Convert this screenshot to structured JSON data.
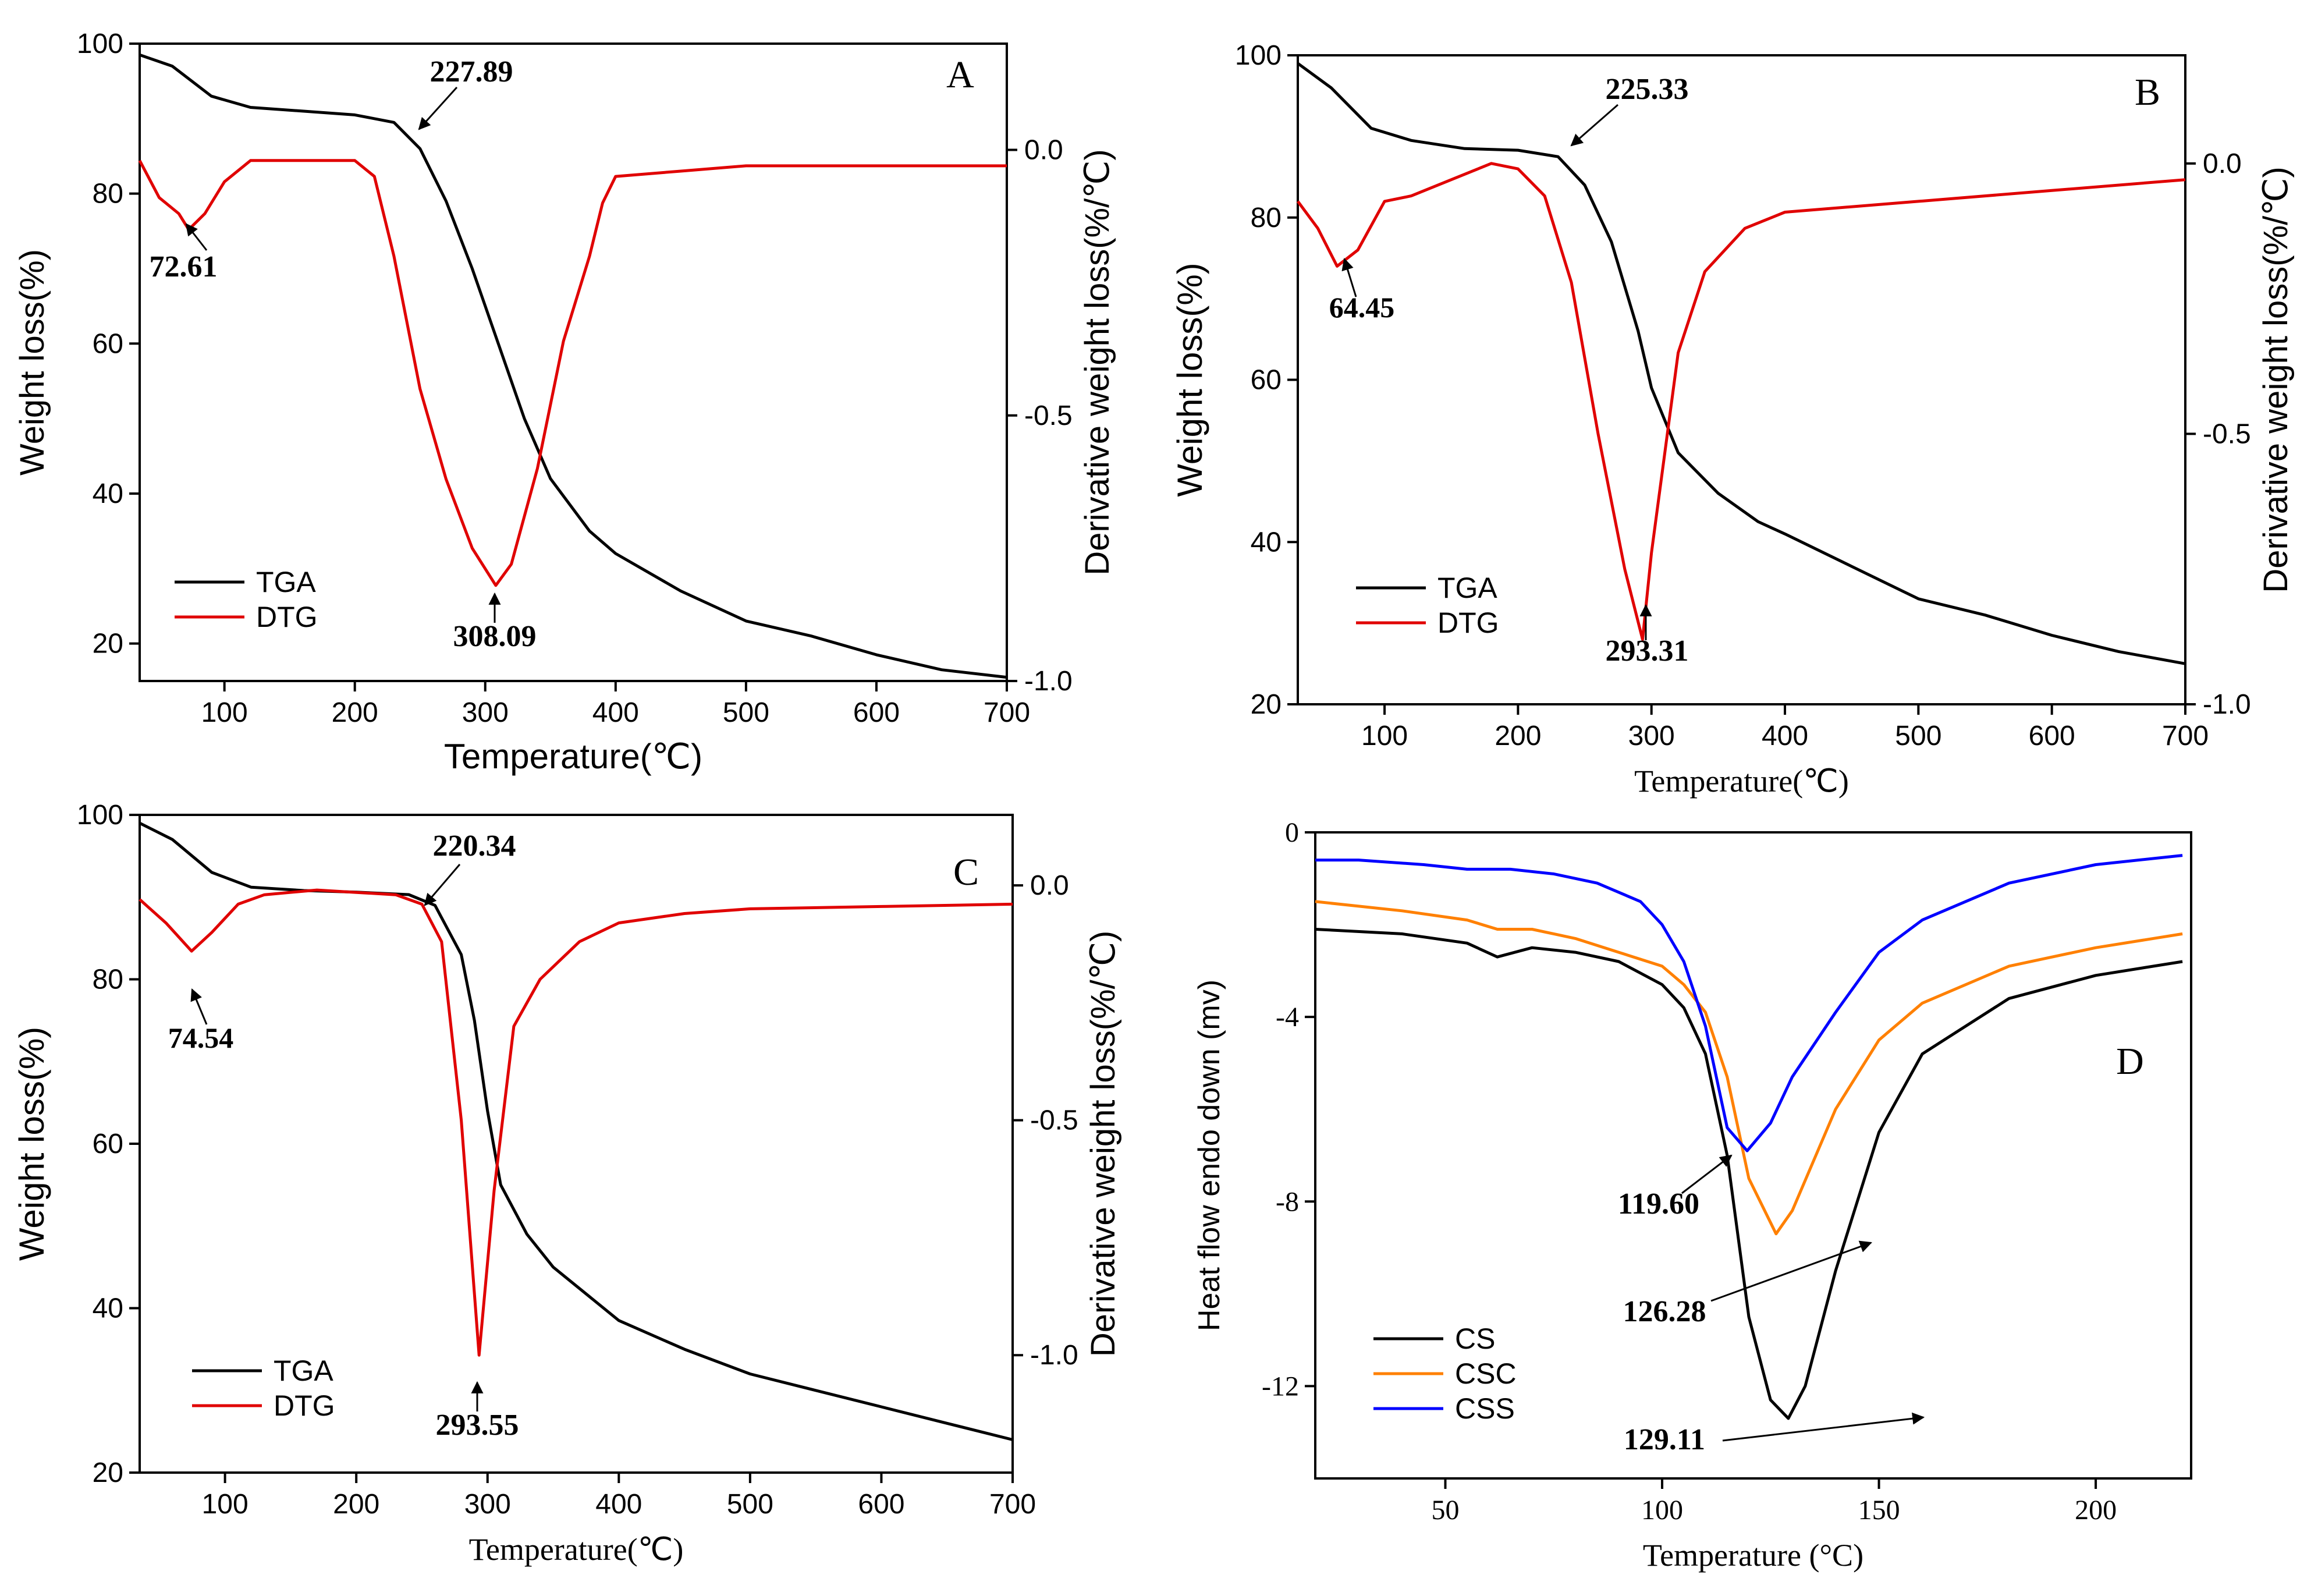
{
  "chart_data": [
    {
      "panel": "A",
      "type": "line",
      "xlabel": "Temperature(℃)",
      "ylabel": "Weight loss(%)",
      "y2label": "Derivative weight loss(%/℃)",
      "xlim": [
        35,
        700
      ],
      "ylim": [
        15,
        100
      ],
      "y2lim": [
        -1.0,
        0.2
      ],
      "xticks": [
        100,
        200,
        300,
        400,
        500,
        600,
        700
      ],
      "yticks": [
        20,
        40,
        60,
        80,
        100
      ],
      "y2ticks": [
        -1.0,
        -0.5,
        0.0
      ],
      "legend": [
        "TGA",
        "DTG"
      ],
      "legend_position": "bottom-left",
      "series": [
        {
          "name": "TGA",
          "axis": "left",
          "color": "#000000",
          "x": [
            35,
            60,
            90,
            120,
            160,
            200,
            230,
            250,
            270,
            290,
            310,
            330,
            350,
            380,
            400,
            450,
            500,
            550,
            600,
            650,
            700
          ],
          "y": [
            98.5,
            97,
            93,
            91.5,
            91,
            90.5,
            89.5,
            86,
            79,
            70,
            60,
            50,
            42,
            35,
            32,
            27,
            23,
            21,
            18.5,
            16.5,
            15.5
          ]
        },
        {
          "name": "DTG",
          "axis": "right",
          "color": "#e00000",
          "x": [
            35,
            50,
            65,
            72.61,
            85,
            100,
            120,
            160,
            200,
            215,
            230,
            250,
            270,
            290,
            308.09,
            320,
            340,
            360,
            380,
            390,
            400,
            450,
            500,
            600,
            700
          ],
          "y": [
            -0.02,
            -0.09,
            -0.12,
            -0.15,
            -0.12,
            -0.06,
            -0.02,
            -0.02,
            -0.02,
            -0.05,
            -0.2,
            -0.45,
            -0.62,
            -0.75,
            -0.82,
            -0.78,
            -0.6,
            -0.36,
            -0.2,
            -0.1,
            -0.05,
            -0.04,
            -0.03,
            -0.03,
            -0.03
          ]
        }
      ],
      "annotations": [
        "227.89",
        "72.61",
        "308.09"
      ]
    },
    {
      "panel": "B",
      "type": "line",
      "xlabel": "Temperature(℃)",
      "ylabel": "Weight loss(%)",
      "y2label": "Derivative weight loss(%/℃)",
      "xlim": [
        35,
        700
      ],
      "ylim": [
        20,
        100
      ],
      "y2lim": [
        -1.0,
        0.2
      ],
      "xticks": [
        100,
        200,
        300,
        400,
        500,
        600,
        700
      ],
      "yticks": [
        20,
        40,
        60,
        80,
        100
      ],
      "y2ticks": [
        -1.0,
        -0.5,
        0.0
      ],
      "legend": [
        "TGA",
        "DTG"
      ],
      "legend_position": "bottom-left",
      "series": [
        {
          "name": "TGA",
          "axis": "left",
          "color": "#000000",
          "x": [
            35,
            60,
            90,
            120,
            160,
            200,
            230,
            250,
            270,
            290,
            300,
            320,
            350,
            380,
            400,
            450,
            500,
            550,
            600,
            650,
            700
          ],
          "y": [
            99,
            96,
            91,
            89.5,
            88.5,
            88.3,
            87.5,
            84,
            77,
            66,
            59,
            51,
            46,
            42.5,
            41,
            37,
            33,
            31,
            28.5,
            26.5,
            25
          ]
        },
        {
          "name": "DTG",
          "axis": "right",
          "color": "#e00000",
          "x": [
            35,
            50,
            64.45,
            80,
            100,
            120,
            150,
            180,
            200,
            220,
            240,
            260,
            280,
            293.31,
            300,
            320,
            340,
            370,
            400,
            500,
            600,
            700
          ],
          "y": [
            -0.07,
            -0.12,
            -0.19,
            -0.16,
            -0.07,
            -0.06,
            -0.03,
            0.0,
            -0.01,
            -0.06,
            -0.22,
            -0.5,
            -0.75,
            -0.88,
            -0.72,
            -0.35,
            -0.2,
            -0.12,
            -0.09,
            -0.07,
            -0.05,
            -0.03
          ]
        }
      ],
      "annotations": [
        "225.33",
        "64.45",
        "293.31"
      ]
    },
    {
      "panel": "C",
      "type": "line",
      "xlabel": "Temperature(℃)",
      "ylabel": "Weight loss(%)",
      "y2label": "Derivative weight loss(%/℃)",
      "xlim": [
        35,
        700
      ],
      "ylim": [
        20,
        100
      ],
      "y2lim": [
        -1.25,
        0.15
      ],
      "xticks": [
        100,
        200,
        300,
        400,
        500,
        600,
        700
      ],
      "yticks": [
        20,
        40,
        60,
        80,
        100
      ],
      "y2ticks": [
        -1.0,
        -0.5,
        0.0
      ],
      "legend": [
        "TGA",
        "DTG"
      ],
      "legend_position": "bottom-left",
      "series": [
        {
          "name": "TGA",
          "axis": "left",
          "color": "#000000",
          "x": [
            35,
            60,
            90,
            120,
            160,
            200,
            240,
            260,
            280,
            290,
            300,
            310,
            330,
            350,
            400,
            450,
            500,
            550,
            600,
            650,
            700
          ],
          "y": [
            99,
            97,
            93,
            91.2,
            90.8,
            90.6,
            90.3,
            89,
            83,
            75,
            64,
            55,
            49,
            45,
            38.5,
            35,
            32,
            30,
            28,
            26,
            24
          ]
        },
        {
          "name": "DTG",
          "axis": "right",
          "color": "#e00000",
          "x": [
            35,
            55,
            74.54,
            90,
            110,
            130,
            170,
            200,
            230,
            250,
            265,
            280,
            293.55,
            305,
            320,
            340,
            370,
            400,
            450,
            500,
            600,
            700
          ],
          "y": [
            -0.03,
            -0.08,
            -0.14,
            -0.1,
            -0.04,
            -0.02,
            -0.01,
            -0.015,
            -0.02,
            -0.04,
            -0.12,
            -0.5,
            -1.0,
            -0.65,
            -0.3,
            -0.2,
            -0.12,
            -0.08,
            -0.06,
            -0.05,
            -0.045,
            -0.04
          ]
        }
      ],
      "annotations": [
        "220.34",
        "74.54",
        "293.55"
      ]
    },
    {
      "panel": "D",
      "type": "line",
      "xlabel": "Temperature (°C)",
      "ylabel": "Heat flow endo down (mv)",
      "xlim": [
        20,
        222
      ],
      "ylim": [
        -14,
        0
      ],
      "xticks": [
        50,
        100,
        150,
        200
      ],
      "yticks": [
        -12,
        -8,
        -4,
        0
      ],
      "legend": [
        "CS",
        "CSC",
        "CSS"
      ],
      "legend_position": "bottom-left",
      "series": [
        {
          "name": "CS",
          "color": "#000000",
          "x": [
            20,
            40,
            55,
            62,
            70,
            80,
            90,
            100,
            105,
            110,
            115,
            120,
            125,
            129.11,
            133,
            140,
            150,
            160,
            180,
            200,
            220
          ],
          "y": [
            -2.1,
            -2.2,
            -2.4,
            -2.7,
            -2.5,
            -2.6,
            -2.8,
            -3.3,
            -3.8,
            -4.8,
            -7.0,
            -10.5,
            -12.3,
            -12.7,
            -12.0,
            -9.5,
            -6.5,
            -4.8,
            -3.6,
            -3.1,
            -2.8
          ]
        },
        {
          "name": "CSC",
          "color": "#ff8000",
          "x": [
            20,
            40,
            55,
            62,
            70,
            80,
            90,
            100,
            105,
            110,
            115,
            120,
            126.28,
            130,
            140,
            150,
            160,
            180,
            200,
            220
          ],
          "y": [
            -1.5,
            -1.7,
            -1.9,
            -2.1,
            -2.1,
            -2.3,
            -2.6,
            -2.9,
            -3.3,
            -3.9,
            -5.3,
            -7.5,
            -8.7,
            -8.2,
            -6.0,
            -4.5,
            -3.7,
            -2.9,
            -2.5,
            -2.2
          ]
        },
        {
          "name": "CSS",
          "color": "#0000ff",
          "x": [
            20,
            30,
            45,
            55,
            65,
            75,
            85,
            95,
            100,
            105,
            110,
            115,
            119.6,
            125,
            130,
            140,
            150,
            160,
            180,
            200,
            220
          ],
          "y": [
            -0.6,
            -0.6,
            -0.7,
            -0.8,
            -0.8,
            -0.9,
            -1.1,
            -1.5,
            -2.0,
            -2.8,
            -4.2,
            -6.4,
            -6.9,
            -6.3,
            -5.3,
            -3.9,
            -2.6,
            -1.9,
            -1.1,
            -0.7,
            -0.5
          ]
        }
      ],
      "annotations": [
        "119.60",
        "126.28",
        "129.11"
      ]
    }
  ]
}
